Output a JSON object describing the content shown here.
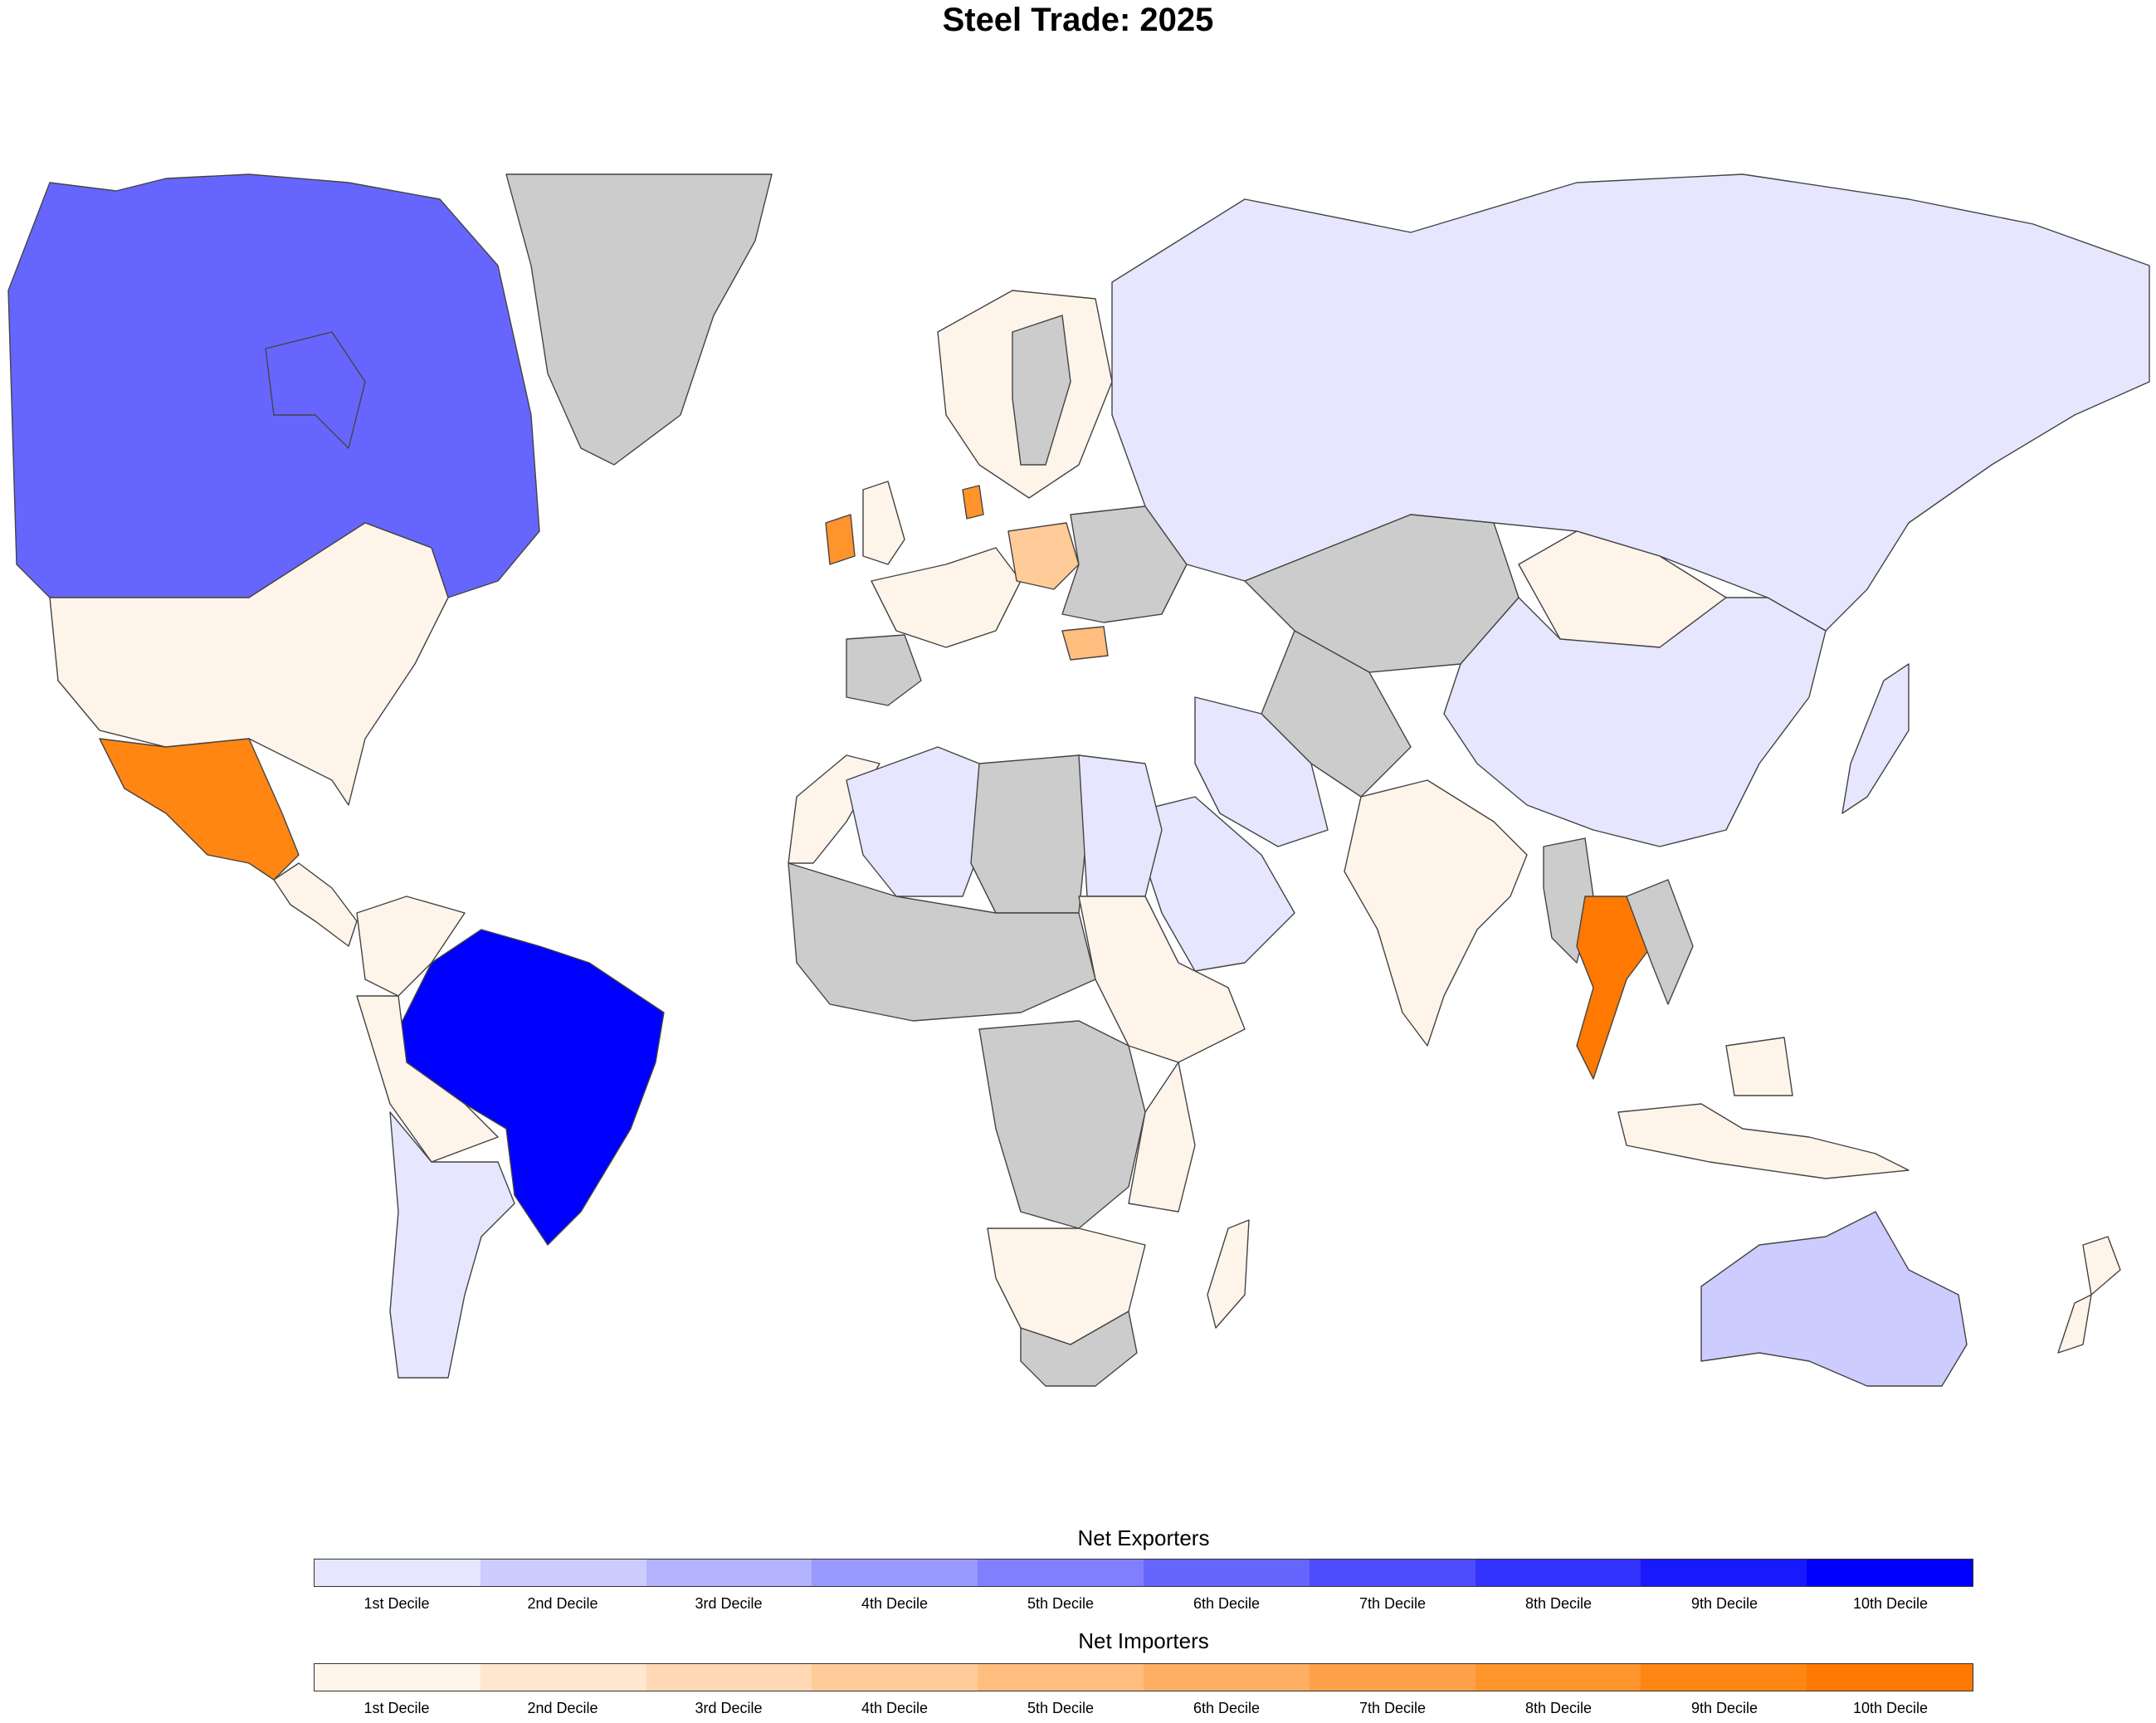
{
  "title": "Steel Trade: 2025",
  "colors": {
    "no_data": "#cccccc",
    "exporters": [
      "#e6e6fe",
      "#ccccfe",
      "#b3b3fe",
      "#9999fe",
      "#8080fe",
      "#6666fe",
      "#4d4dfe",
      "#3333fe",
      "#1919fe",
      "#0000fe"
    ],
    "importers": [
      "#fff4ea",
      "#ffe6cf",
      "#ffd9b4",
      "#ffcb99",
      "#ffbd7e",
      "#ffaf63",
      "#ffa148",
      "#ff942d",
      "#ff8612",
      "#ff7800"
    ]
  },
  "legend": {
    "exporters": {
      "title": "Net Exporters",
      "labels": [
        "1st Decile",
        "2nd Decile",
        "3rd Decile",
        "4th Decile",
        "5th Decile",
        "6th Decile",
        "7th Decile",
        "8th Decile",
        "9th Decile",
        "10th Decile"
      ]
    },
    "importers": {
      "title": "Net Importers",
      "labels": [
        "1st Decile",
        "2nd Decile",
        "3rd Decile",
        "4th Decile",
        "5th Decile",
        "6th Decile",
        "7th Decile",
        "8th Decile",
        "9th Decile",
        "10th Decile"
      ]
    }
  },
  "countries": [
    {
      "id": "canada",
      "category": "exporter",
      "decile": 6
    },
    {
      "id": "united-states",
      "category": "importer",
      "decile": 1
    },
    {
      "id": "mexico",
      "category": "importer",
      "decile": 9
    },
    {
      "id": "brazil",
      "category": "exporter",
      "decile": 10
    },
    {
      "id": "argentina",
      "category": "exporter",
      "decile": 1
    },
    {
      "id": "russia",
      "category": "exporter",
      "decile": 1
    },
    {
      "id": "china",
      "category": "exporter",
      "decile": 1
    },
    {
      "id": "india",
      "category": "importer",
      "decile": 1
    },
    {
      "id": "australia",
      "category": "exporter",
      "decile": 2
    },
    {
      "id": "thailand",
      "category": "importer",
      "decile": 10
    },
    {
      "id": "poland",
      "category": "importer",
      "decile": 4
    },
    {
      "id": "ireland",
      "category": "importer",
      "decile": 8
    },
    {
      "id": "denmark",
      "category": "importer",
      "decile": 8
    },
    {
      "id": "bulgaria",
      "category": "importer",
      "decile": 5
    },
    {
      "id": "greenland",
      "category": "no_data"
    },
    {
      "id": "mongolia",
      "category": "importer",
      "decile": 1
    },
    {
      "id": "kazakhstan",
      "category": "no_data"
    },
    {
      "id": "saudi-arabia",
      "category": "exporter",
      "decile": 1
    },
    {
      "id": "algeria",
      "category": "exporter",
      "decile": 1
    },
    {
      "id": "egypt",
      "category": "exporter",
      "decile": 1
    },
    {
      "id": "dr-congo",
      "category": "no_data"
    },
    {
      "id": "libya",
      "category": "no_data"
    },
    {
      "id": "south-africa",
      "category": "no_data"
    },
    {
      "id": "madagascar",
      "category": "importer",
      "decile": 1
    },
    {
      "id": "new-zealand",
      "category": "importer",
      "decile": 1
    },
    {
      "id": "indonesia",
      "category": "importer",
      "decile": 1
    },
    {
      "id": "japan",
      "category": "exporter",
      "decile": 1
    }
  ]
}
